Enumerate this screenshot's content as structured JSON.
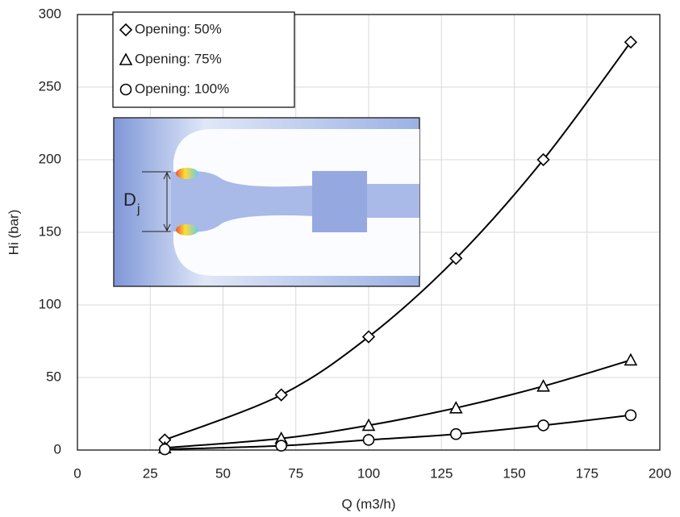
{
  "chart_data": {
    "type": "scatter",
    "x_label": "Q (m3/h)",
    "y_label": "Hi (bar)",
    "xlim": [
      0,
      200
    ],
    "xticks": [
      0,
      25,
      50,
      75,
      100,
      125,
      150,
      175,
      200
    ],
    "ylim": [
      0,
      300
    ],
    "yticks": [
      0,
      50,
      100,
      150,
      200,
      250,
      300
    ],
    "grid": true,
    "legend": "upper left",
    "smooth": true,
    "series": [
      {
        "name": "Opening: 50%",
        "marker": "diamond",
        "color": "#000000",
        "x": [
          30,
          70,
          100,
          130,
          160,
          190
        ],
        "values": [
          7,
          38,
          78,
          132,
          200,
          281
        ]
      },
      {
        "name": "Opening: 75%",
        "marker": "triangle",
        "color": "#000000",
        "x": [
          30,
          70,
          100,
          130,
          160,
          190
        ],
        "values": [
          1.5,
          8,
          17,
          29,
          44,
          62
        ]
      },
      {
        "name": "Opening: 100%",
        "marker": "circle",
        "color": "#000000",
        "x": [
          30,
          70,
          100,
          130,
          160,
          190
        ],
        "values": [
          0.5,
          3,
          7,
          11,
          17,
          24
        ]
      }
    ],
    "inset": {
      "label": "D",
      "subscript": "j"
    }
  }
}
